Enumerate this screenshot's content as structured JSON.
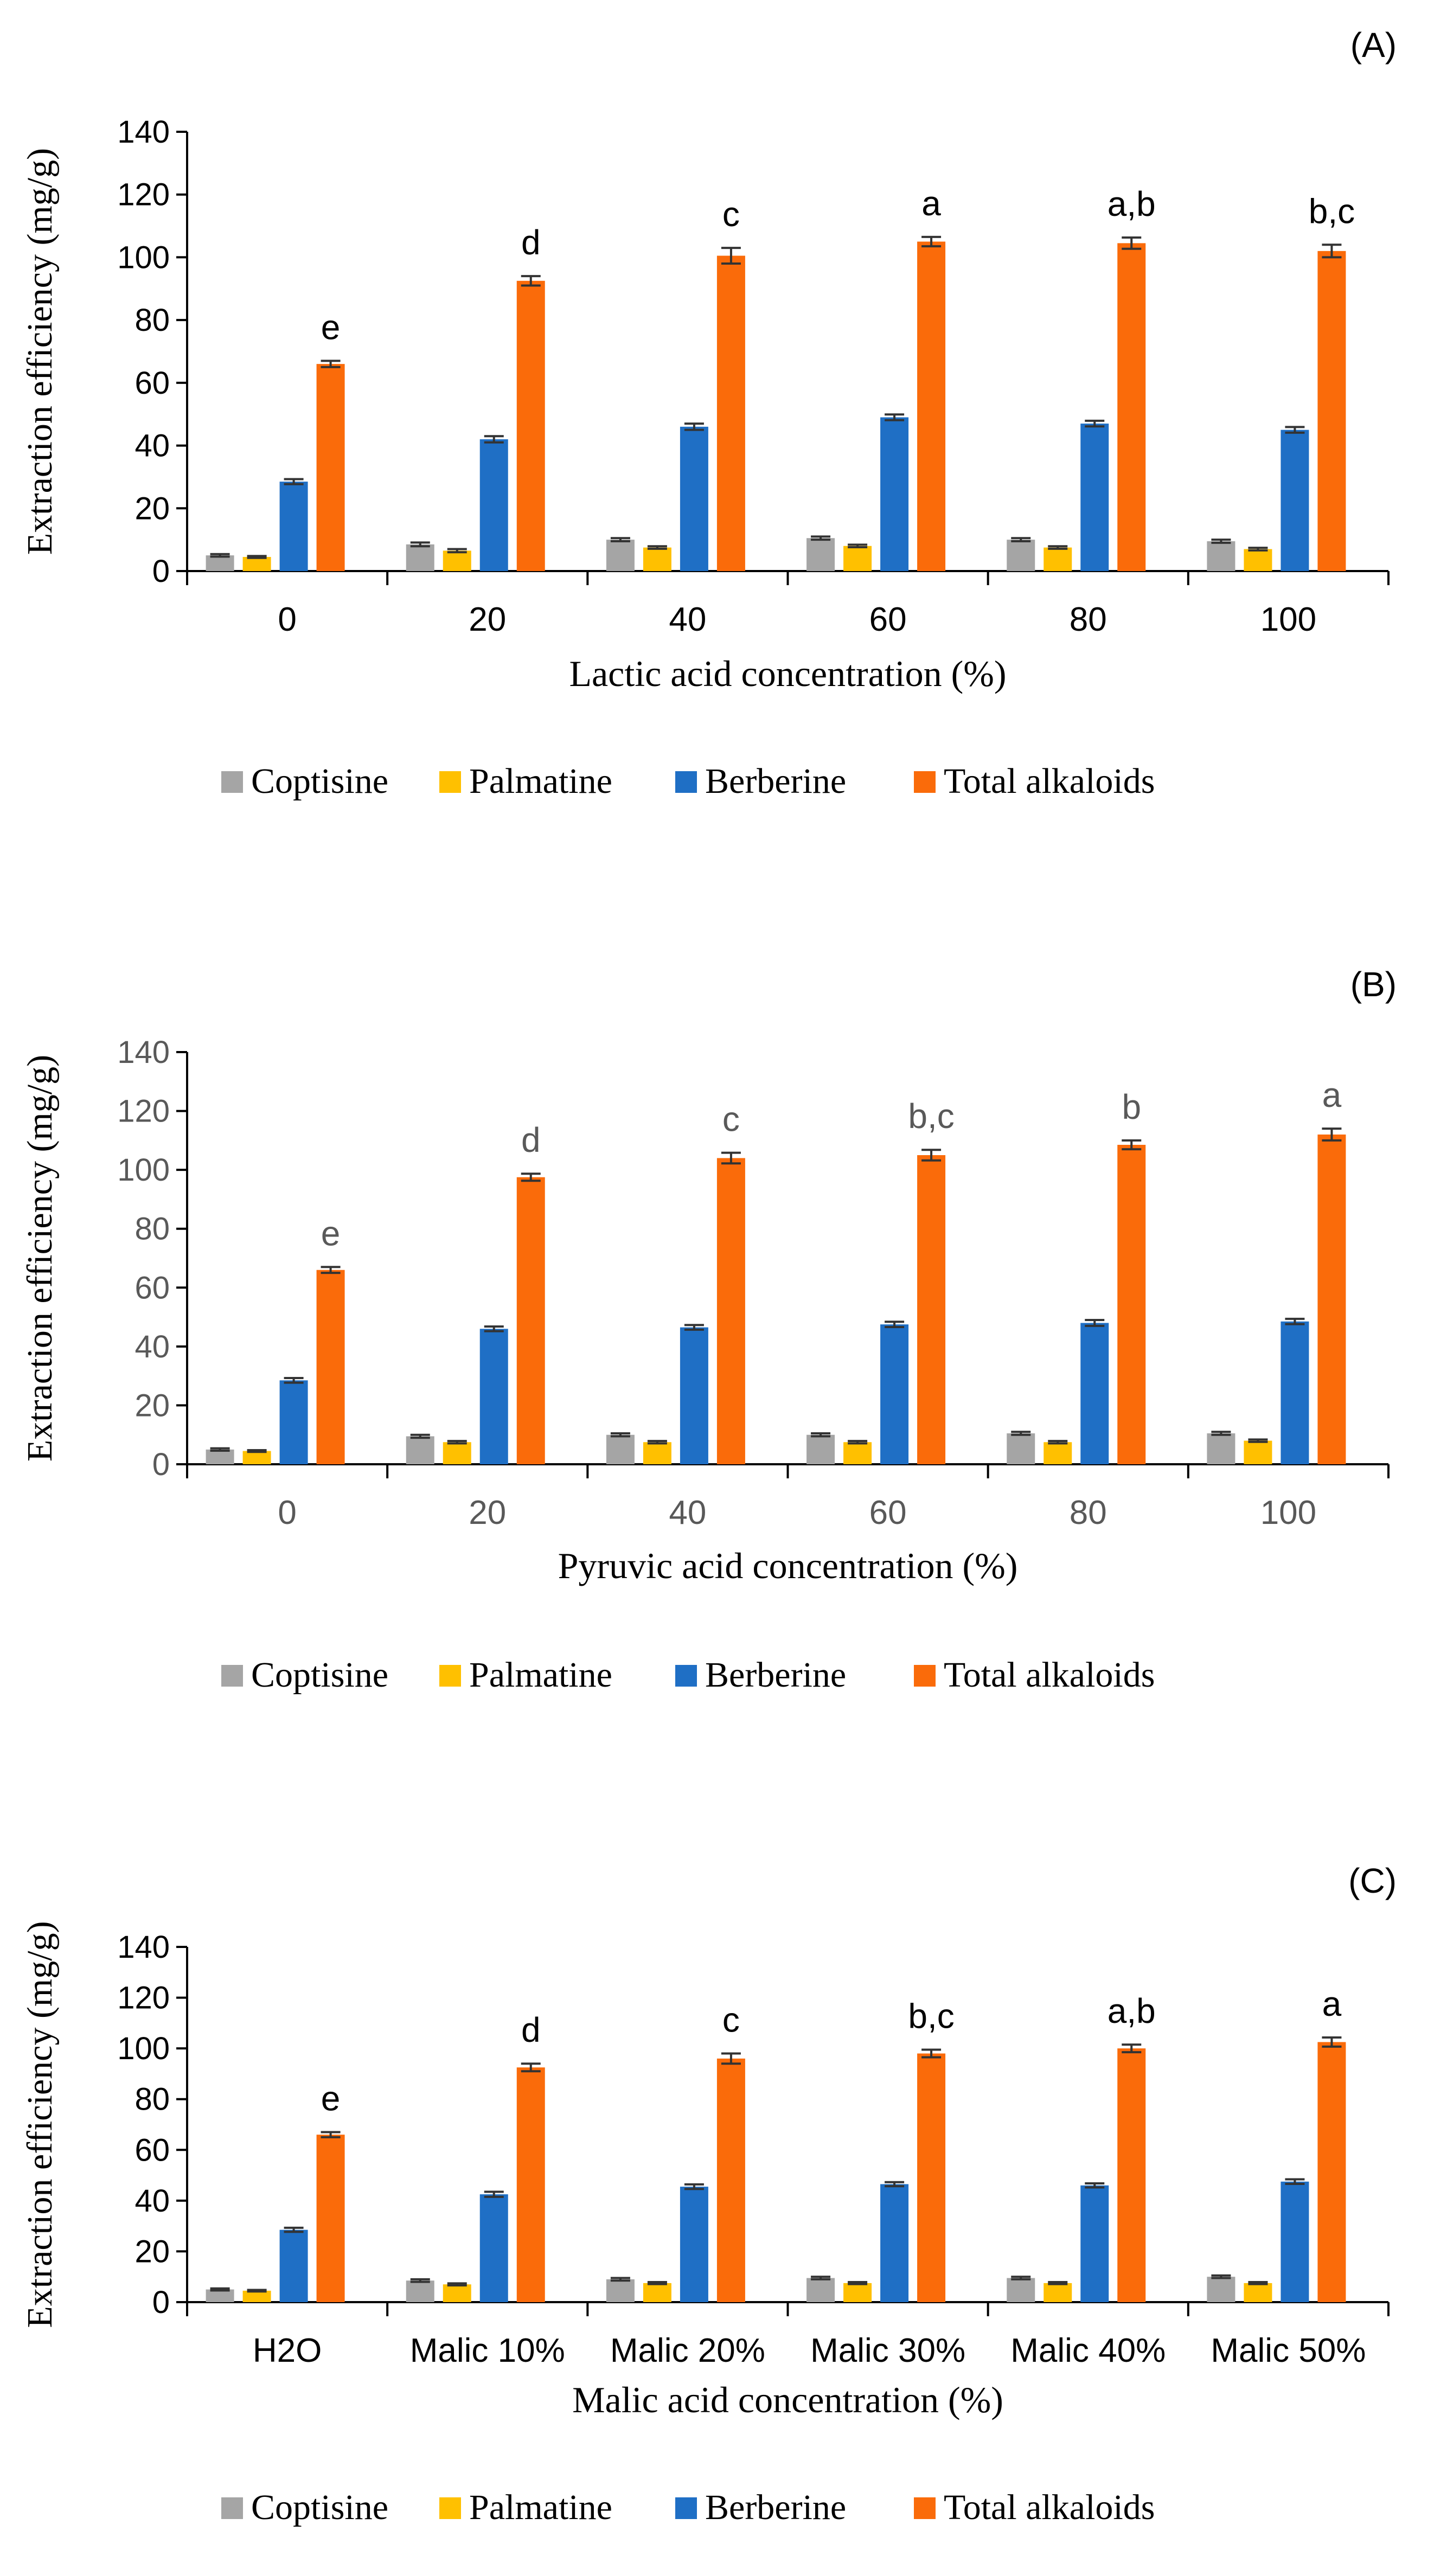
{
  "figure_title": "",
  "colors": {
    "Coptisine": "#a5a5a5",
    "Palmatine": "#ffc000",
    "Berberine": "#1f6fc5",
    "Total alkaloids": "#fa6b0a",
    "axis": "#000000",
    "error_bar": "#333333"
  },
  "chart_data": [
    {
      "type": "bar",
      "panel_label": "(A)",
      "title": "",
      "xlabel": "Lactic acid concentration (%)",
      "ylabel": "Extraction efficiency (mg/g)",
      "ylim": [
        0,
        140
      ],
      "yticks": [
        "0",
        "20",
        "40",
        "60",
        "80",
        "100",
        "120",
        "140"
      ],
      "categories": [
        "0",
        "20",
        "40",
        "60",
        "80",
        "100"
      ],
      "tick_color": "#000000",
      "letter_color": "#000000",
      "series": [
        {
          "name": "Coptisine",
          "values": [
            5,
            8.5,
            10,
            10.5,
            10,
            9.5
          ],
          "errors": [
            0.4,
            0.6,
            0.5,
            0.5,
            0.5,
            0.5
          ]
        },
        {
          "name": "Palmatine",
          "values": [
            4.5,
            6.5,
            7.5,
            8,
            7.5,
            7
          ],
          "errors": [
            0.3,
            0.5,
            0.4,
            0.4,
            0.4,
            0.4
          ]
        },
        {
          "name": "Berberine",
          "values": [
            28.5,
            42,
            46,
            49,
            47,
            45
          ],
          "errors": [
            0.8,
            1,
            1,
            0.9,
            0.9,
            0.9
          ]
        },
        {
          "name": "Total alkaloids",
          "values": [
            66,
            92.5,
            100.5,
            105,
            104.5,
            102
          ],
          "errors": [
            1,
            1.5,
            2.5,
            1.5,
            1.8,
            2
          ]
        }
      ],
      "significance_letters": [
        "e",
        "d",
        "c",
        "a",
        "a,b",
        "b,c"
      ],
      "legend": [
        "Coptisine",
        "Palmatine",
        "Berberine",
        "Total alkaloids"
      ]
    },
    {
      "type": "bar",
      "panel_label": "(B)",
      "title": "",
      "xlabel": "Pyruvic acid concentration (%)",
      "ylabel": "Extraction efficiency (mg/g)",
      "ylim": [
        0,
        140
      ],
      "yticks": [
        "0",
        "20",
        "40",
        "60",
        "80",
        "100",
        "120",
        "140"
      ],
      "categories": [
        "0",
        "20",
        "40",
        "60",
        "80",
        "100"
      ],
      "tick_color": "#595959",
      "letter_color": "#595959",
      "series": [
        {
          "name": "Coptisine",
          "values": [
            5,
            9.5,
            10,
            10,
            10.5,
            10.5
          ],
          "errors": [
            0.4,
            0.5,
            0.5,
            0.5,
            0.5,
            0.5
          ]
        },
        {
          "name": "Palmatine",
          "values": [
            4.5,
            7.5,
            7.5,
            7.5,
            7.5,
            8
          ],
          "errors": [
            0.3,
            0.4,
            0.4,
            0.4,
            0.4,
            0.4
          ]
        },
        {
          "name": "Berberine",
          "values": [
            28.5,
            46,
            46.5,
            47.5,
            48,
            48.5
          ],
          "errors": [
            0.8,
            0.8,
            0.8,
            0.9,
            1,
            0.9
          ]
        },
        {
          "name": "Total alkaloids",
          "values": [
            66,
            97.5,
            104,
            105,
            108.5,
            112
          ],
          "errors": [
            1,
            1.2,
            1.8,
            1.8,
            1.5,
            2
          ]
        }
      ],
      "significance_letters": [
        "e",
        "d",
        "c",
        "b,c",
        "b",
        "a"
      ],
      "legend": [
        "Coptisine",
        "Palmatine",
        "Berberine",
        "Total alkaloids"
      ]
    },
    {
      "type": "bar",
      "panel_label": "(C)",
      "title": "",
      "xlabel": "Malic acid concentration (%)",
      "ylabel": "Extraction efficiency (mg/g)",
      "ylim": [
        0,
        140
      ],
      "yticks": [
        "0",
        "20",
        "40",
        "60",
        "80",
        "100",
        "120",
        "140"
      ],
      "categories": [
        "H2O",
        "Malic 10%",
        "Malic 20%",
        "Malic 30%",
        "Malic 40%",
        "Malic 50%"
      ],
      "tick_color": "#000000",
      "letter_color": "#000000",
      "series": [
        {
          "name": "Coptisine",
          "values": [
            5,
            8.5,
            9,
            9.5,
            9.5,
            10
          ],
          "errors": [
            0.4,
            0.5,
            0.5,
            0.5,
            0.5,
            0.5
          ]
        },
        {
          "name": "Palmatine",
          "values": [
            4.5,
            7,
            7.5,
            7.5,
            7.5,
            7.5
          ],
          "errors": [
            0.3,
            0.4,
            0.4,
            0.4,
            0.4,
            0.4
          ]
        },
        {
          "name": "Berberine",
          "values": [
            28.5,
            42.5,
            45.5,
            46.5,
            46,
            47.5
          ],
          "errors": [
            0.8,
            1,
            0.9,
            0.8,
            0.8,
            0.9
          ]
        },
        {
          "name": "Total alkaloids",
          "values": [
            66,
            92.5,
            96,
            98,
            100,
            102.5
          ],
          "errors": [
            1,
            1.5,
            2,
            1.5,
            1.5,
            1.8
          ]
        }
      ],
      "significance_letters": [
        "e",
        "d",
        "c",
        "b,c",
        "a,b",
        "a"
      ],
      "legend": [
        "Coptisine",
        "Palmatine",
        "Berberine",
        "Total alkaloids"
      ]
    }
  ]
}
